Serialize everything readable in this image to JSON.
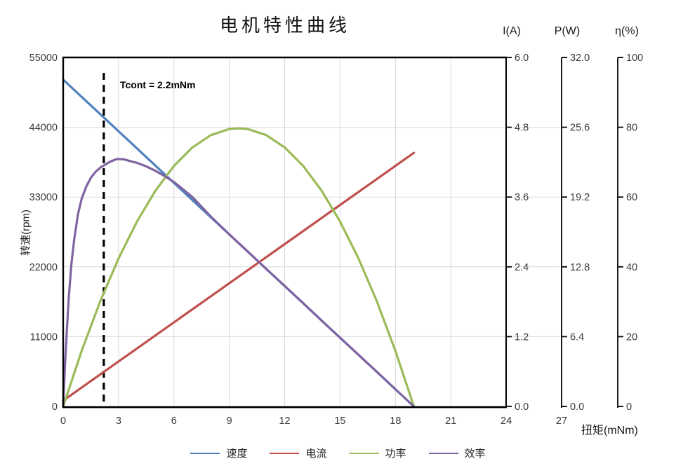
{
  "chart_data": {
    "type": "line",
    "title": "电机特性曲线",
    "x_axis": {
      "label": "扭矩(mNm)",
      "min": 0,
      "max": 27,
      "plot_max": 24,
      "ticks": [
        0,
        3,
        6,
        9,
        12,
        15,
        18,
        21,
        24,
        27
      ],
      "grid": true
    },
    "y_axes": [
      {
        "id": "speed",
        "label": "转速(rpm)",
        "position": "left",
        "min": 0,
        "max": 55000,
        "ticks": [
          "55000",
          "44000",
          "33000",
          "22000",
          "11000",
          "0"
        ]
      },
      {
        "id": "current",
        "label": "I(A)",
        "position": "right",
        "min": 0,
        "max": 6,
        "ticks": [
          "6.0",
          "4.8",
          "3.6",
          "2.4",
          "1.2",
          "0.0"
        ]
      },
      {
        "id": "power",
        "label": "P(W)",
        "position": "right",
        "min": 0,
        "max": 32,
        "ticks": [
          "32.0",
          "25.6",
          "19.2",
          "12.8",
          "6.4",
          "0.0"
        ]
      },
      {
        "id": "efficiency",
        "label": "η(%)",
        "position": "right",
        "min": 0,
        "max": 100,
        "ticks": [
          "100",
          "80",
          "60",
          "40",
          "20",
          "0"
        ]
      }
    ],
    "series": [
      {
        "name": "速度",
        "axis": "speed",
        "color": "#4F81BD",
        "points": [
          [
            0,
            51500
          ],
          [
            19,
            0
          ]
        ]
      },
      {
        "name": "电流",
        "axis": "current",
        "color": "#C0504D",
        "points": [
          [
            0,
            0.1
          ],
          [
            19,
            4.36
          ]
        ]
      },
      {
        "name": "功率",
        "axis": "power",
        "color": "#9BBB59",
        "points": [
          [
            0,
            0
          ],
          [
            1,
            5.09
          ],
          [
            2,
            9.61
          ],
          [
            3,
            13.57
          ],
          [
            4,
            16.96
          ],
          [
            5,
            19.79
          ],
          [
            6,
            22.05
          ],
          [
            7,
            23.75
          ],
          [
            8,
            24.88
          ],
          [
            9,
            25.44
          ],
          [
            9.5,
            25.5
          ],
          [
            10,
            25.44
          ],
          [
            11,
            24.88
          ],
          [
            12,
            23.75
          ],
          [
            13,
            22.05
          ],
          [
            14,
            19.79
          ],
          [
            15,
            16.96
          ],
          [
            16,
            13.57
          ],
          [
            17,
            9.61
          ],
          [
            18,
            5.09
          ],
          [
            19,
            0
          ]
        ]
      },
      {
        "name": "效率",
        "axis": "efficiency",
        "color": "#8064A2",
        "points": [
          [
            0,
            0
          ],
          [
            0.1,
            12
          ],
          [
            0.2,
            22
          ],
          [
            0.3,
            31
          ],
          [
            0.45,
            41
          ],
          [
            0.6,
            48
          ],
          [
            0.8,
            55
          ],
          [
            1,
            59.5
          ],
          [
            1.25,
            63
          ],
          [
            1.5,
            65.5
          ],
          [
            1.75,
            67.2
          ],
          [
            2,
            68.4
          ],
          [
            2.5,
            70
          ],
          [
            2.9,
            70.9
          ],
          [
            3.3,
            70.8
          ],
          [
            3.7,
            70.2
          ],
          [
            4,
            69.8
          ],
          [
            4.5,
            68.8
          ],
          [
            5,
            67.5
          ],
          [
            5.5,
            66
          ],
          [
            6,
            64.3
          ],
          [
            6.5,
            62.2
          ],
          [
            7,
            60
          ],
          [
            7.5,
            57.2
          ],
          [
            8,
            54.4
          ],
          [
            9,
            49.3
          ],
          [
            10,
            44.4
          ],
          [
            11,
            39.4
          ],
          [
            12,
            34.5
          ],
          [
            13,
            29.6
          ],
          [
            14,
            24.6
          ],
          [
            15,
            19.7
          ],
          [
            16,
            14.8
          ],
          [
            17,
            9.9
          ],
          [
            18,
            4.9
          ],
          [
            19,
            0
          ]
        ]
      }
    ],
    "annotation": {
      "text": "Tcont = 2.2mNm",
      "x": 2.2,
      "line_style": "dashed",
      "line_color": "#000000"
    },
    "legend_position": "bottom",
    "style": {
      "grid_color": "#D9D9D9",
      "axis_color": "#000000",
      "tick_label_color": "#3A3A3A"
    }
  }
}
